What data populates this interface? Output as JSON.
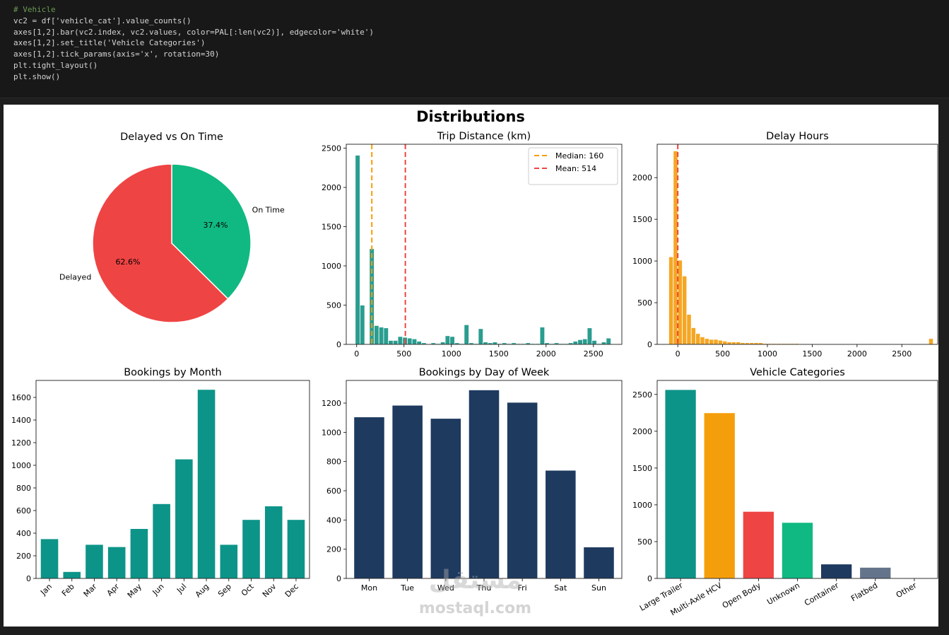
{
  "code_cell": {
    "lines": [
      "# Vehicle",
      "vc2 = df['vehicle_cat'].value_counts()",
      "axes[1,2].bar(vc2.index, vc2.values, color=PAL[:len(vc2)], edgecolor='white')",
      "axes[1,2].set_title('Vehicle Categories')",
      "axes[1,2].tick_params(axis='x', rotation=30)",
      "plt.tight_layout()",
      "plt.show()"
    ]
  },
  "figure": {
    "suptitle": "Distributions"
  },
  "watermark": {
    "arabic": "مستقل",
    "latin": "mostaql.com"
  },
  "colors": {
    "teal": "#0d9488",
    "teal_hist": "#2a9d8f",
    "amber": "#f59e0b",
    "red": "#ef4444",
    "green": "#10b981",
    "navy": "#1e3a5f",
    "slate": "#64748b"
  },
  "chart_data": [
    {
      "type": "pie",
      "title": "Delayed vs On Time",
      "labels": [
        "Delayed",
        "On Time"
      ],
      "values": [
        62.6,
        37.4
      ],
      "pct_labels": [
        "62.6%",
        "37.4%"
      ],
      "colors": [
        "#ef4444",
        "#10b981"
      ]
    },
    {
      "type": "bar",
      "title": "Trip Distance (km)",
      "histogram": true,
      "bin_width": 50,
      "x": [
        10,
        60,
        160,
        210,
        260,
        310,
        360,
        410,
        460,
        510,
        560,
        610,
        660,
        710,
        810,
        860,
        910,
        960,
        1010,
        1060,
        1110,
        1160,
        1210,
        1260,
        1310,
        1360,
        1410,
        1460,
        1510,
        1560,
        1610,
        1660,
        1710,
        1760,
        1810,
        1860,
        1910,
        1960,
        2010,
        2060,
        2110,
        2160,
        2210,
        2260,
        2310,
        2360,
        2410,
        2460,
        2510,
        2560,
        2610,
        2660
      ],
      "values": [
        2410,
        500,
        1220,
        240,
        220,
        210,
        50,
        50,
        100,
        90,
        80,
        70,
        40,
        20,
        20,
        10,
        30,
        110,
        100,
        20,
        10,
        250,
        20,
        10,
        200,
        30,
        20,
        30,
        10,
        20,
        10,
        20,
        10,
        10,
        20,
        10,
        10,
        220,
        20,
        10,
        20,
        10,
        10,
        20,
        40,
        60,
        70,
        210,
        50,
        10,
        30,
        80
      ],
      "color": "#2a9d8f",
      "xlim": [
        -110,
        2800
      ],
      "ylim": [
        0,
        2550
      ],
      "xticks": [
        0,
        500,
        1000,
        1500,
        2000,
        2500
      ],
      "yticks": [
        0,
        500,
        1000,
        1500,
        2000,
        2500
      ],
      "vlines": [
        {
          "x": 160,
          "label": "Median: 160",
          "color": "#f59e0b",
          "style": "dashed"
        },
        {
          "x": 514,
          "label": "Mean: 514",
          "color": "#ef4444",
          "style": "dashed"
        }
      ],
      "legend": "top-right"
    },
    {
      "type": "bar",
      "title": "Delay Hours",
      "histogram": true,
      "bin_width": 50,
      "x": [
        -75,
        -25,
        25,
        75,
        125,
        175,
        225,
        275,
        325,
        375,
        425,
        475,
        525,
        575,
        625,
        675,
        725,
        775,
        825,
        875,
        925,
        975,
        1025,
        1075,
        1125,
        1175,
        1225,
        1275,
        1325,
        1375,
        1425,
        1475,
        1525,
        1575,
        1625,
        1675,
        1725,
        1775,
        1825,
        1875,
        1925,
        1975,
        2025,
        2075,
        2125,
        2175,
        2225,
        2275,
        2325,
        2375,
        2425,
        2475,
        2525,
        2575,
        2625,
        2675,
        2725,
        2775,
        2825
      ],
      "values": [
        1050,
        2320,
        1010,
        820,
        360,
        200,
        130,
        90,
        70,
        60,
        60,
        50,
        40,
        30,
        30,
        30,
        20,
        20,
        20,
        20,
        20,
        10,
        10,
        10,
        10,
        10,
        10,
        10,
        10,
        5,
        5,
        5,
        5,
        5,
        5,
        5,
        5,
        5,
        5,
        5,
        5,
        5,
        5,
        5,
        5,
        5,
        5,
        5,
        5,
        5,
        5,
        5,
        5,
        5,
        5,
        5,
        5,
        5,
        70
      ],
      "color": "#f5a623",
      "xlim": [
        -230,
        2900
      ],
      "ylim": [
        0,
        2400
      ],
      "xticks": [
        0,
        500,
        1000,
        1500,
        2000,
        2500
      ],
      "yticks": [
        0,
        500,
        1000,
        1500,
        2000
      ],
      "vlines": [
        {
          "x": 0,
          "color": "#ef4444",
          "style": "dashed"
        }
      ]
    },
    {
      "type": "bar",
      "title": "Bookings by Month",
      "categories": [
        "Jan",
        "Feb",
        "Mar",
        "Apr",
        "May",
        "Jun",
        "Jul",
        "Aug",
        "Sep",
        "Oct",
        "Nov",
        "Dec"
      ],
      "values": [
        350,
        60,
        300,
        280,
        440,
        660,
        1055,
        1670,
        300,
        520,
        640,
        520
      ],
      "color": "#0d9488",
      "ylim": [
        0,
        1750
      ],
      "yticks": [
        0,
        200,
        400,
        600,
        800,
        1000,
        1200,
        1400,
        1600
      ],
      "tick_rotation": 45
    },
    {
      "type": "bar",
      "title": "Bookings by Day of Week",
      "categories": [
        "Mon",
        "Tue",
        "Wed",
        "Thu",
        "Fri",
        "Sat",
        "Sun"
      ],
      "values": [
        1105,
        1185,
        1095,
        1290,
        1205,
        740,
        215
      ],
      "color": "#1e3a5f",
      "ylim": [
        0,
        1355
      ],
      "yticks": [
        0,
        200,
        400,
        600,
        800,
        1000,
        1200
      ]
    },
    {
      "type": "bar",
      "title": "Vehicle Categories",
      "categories": [
        "Large Trailer",
        "Multi-Axle HCV",
        "Open Body",
        "Unknown",
        "Container",
        "Flatbed",
        "Other"
      ],
      "values": [
        2565,
        2250,
        910,
        760,
        195,
        150,
        5
      ],
      "colors": [
        "#0d9488",
        "#f59e0b",
        "#ef4444",
        "#10b981",
        "#1e3a5f",
        "#64748b",
        "#1e3a5f"
      ],
      "ylim": [
        0,
        2690
      ],
      "yticks": [
        0,
        500,
        1000,
        1500,
        2000,
        2500
      ],
      "tick_rotation": 30
    }
  ]
}
